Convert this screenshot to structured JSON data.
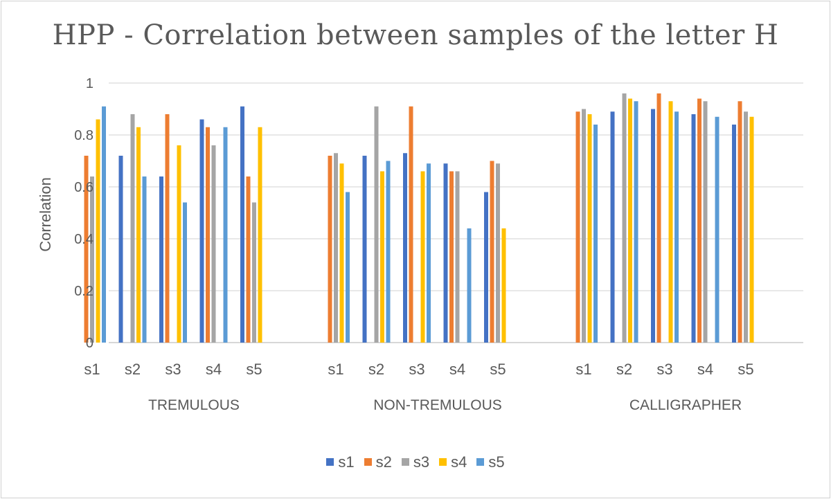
{
  "chart_data": {
    "type": "bar",
    "title": "HPP - Correlation between samples of the letter H",
    "ylabel": "Correlation",
    "ylim": [
      0,
      1
    ],
    "yticks": [
      "0",
      "0.2",
      "0.4",
      "0.6",
      "0.8",
      "1"
    ],
    "grid": true,
    "legend_position": "bottom",
    "groups": [
      {
        "name": "TREMULOUS",
        "categories": [
          "s1",
          "s2",
          "s3",
          "s4",
          "s5"
        ],
        "series": [
          {
            "name": "s1",
            "values": [
              null,
              0.72,
              0.64,
              0.86,
              0.91
            ]
          },
          {
            "name": "s2",
            "values": [
              0.72,
              null,
              0.88,
              0.83,
              0.64
            ]
          },
          {
            "name": "s3",
            "values": [
              0.64,
              0.88,
              null,
              0.76,
              0.54
            ]
          },
          {
            "name": "s4",
            "values": [
              0.86,
              0.83,
              0.76,
              null,
              0.83
            ]
          },
          {
            "name": "s5",
            "values": [
              0.91,
              0.64,
              0.54,
              0.83,
              null
            ]
          }
        ]
      },
      {
        "name": "NON-TREMULOUS",
        "categories": [
          "s1",
          "s2",
          "s3",
          "s4",
          "s5"
        ],
        "series": [
          {
            "name": "s1",
            "values": [
              null,
              0.72,
              0.73,
              0.69,
              0.58
            ]
          },
          {
            "name": "s2",
            "values": [
              0.72,
              null,
              0.91,
              0.66,
              0.7
            ]
          },
          {
            "name": "s3",
            "values": [
              0.73,
              0.91,
              null,
              0.66,
              0.69
            ]
          },
          {
            "name": "s4",
            "values": [
              0.69,
              0.66,
              0.66,
              null,
              0.44
            ]
          },
          {
            "name": "s5",
            "values": [
              0.58,
              0.7,
              0.69,
              0.44,
              null
            ]
          }
        ]
      },
      {
        "name": "CALLIGRAPHER",
        "categories": [
          "s1",
          "s2",
          "s3",
          "s4",
          "s5"
        ],
        "series": [
          {
            "name": "s1",
            "values": [
              null,
              0.89,
              0.9,
              0.88,
              0.84
            ]
          },
          {
            "name": "s2",
            "values": [
              0.89,
              null,
              0.96,
              0.94,
              0.93
            ]
          },
          {
            "name": "s3",
            "values": [
              0.9,
              0.96,
              null,
              0.93,
              0.89
            ]
          },
          {
            "name": "s4",
            "values": [
              0.88,
              0.94,
              0.93,
              null,
              0.87
            ]
          },
          {
            "name": "s5",
            "values": [
              0.84,
              0.93,
              0.89,
              0.87,
              null
            ]
          }
        ]
      }
    ],
    "series_colors": [
      "#4472C4",
      "#ED7D31",
      "#A5A5A5",
      "#FFC000",
      "#5B9BD5"
    ],
    "legend": [
      "s1",
      "s2",
      "s3",
      "s4",
      "s5"
    ]
  }
}
